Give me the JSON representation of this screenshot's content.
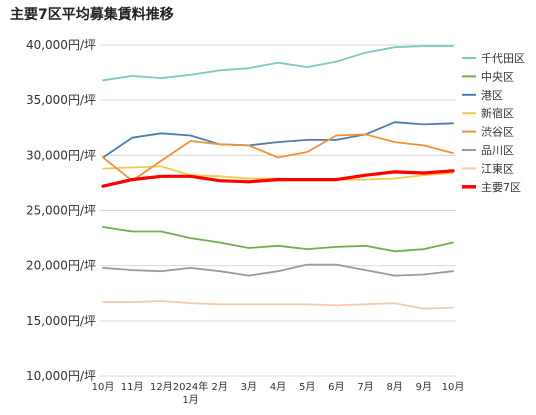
{
  "chart_data": {
    "type": "line",
    "title": "主要7区平均募集賃料推移",
    "xlabel": "",
    "ylabel": "",
    "categories": [
      "10月",
      "11月",
      "12月",
      "2024年\n1月",
      "2月",
      "3月",
      "4月",
      "5月",
      "6月",
      "7月",
      "8月",
      "9月",
      "10月"
    ],
    "ylim": [
      10000,
      40000
    ],
    "yticks": [
      "10,000円/坪",
      "15,000円/坪",
      "20,000円/坪",
      "25,000円/坪",
      "30,000円/坪",
      "35,000円/坪",
      "40,000円/坪"
    ],
    "grid": true,
    "legend": "right",
    "series": [
      {
        "name": "千代田区",
        "color": "#7ec8c3",
        "values": [
          36800,
          37200,
          37000,
          37300,
          37700,
          37900,
          38400,
          38000,
          38500,
          39300,
          39800,
          39900,
          39900
        ]
      },
      {
        "name": "中央区",
        "color": "#6ab04c",
        "values": [
          23500,
          23100,
          23100,
          22500,
          22100,
          21600,
          21800,
          21500,
          21700,
          21800,
          21300,
          21500,
          22100
        ]
      },
      {
        "name": "港区",
        "color": "#4a7fb0",
        "values": [
          29800,
          31600,
          32000,
          31800,
          31000,
          30900,
          31200,
          31400,
          31400,
          31900,
          33000,
          32800,
          32900
        ]
      },
      {
        "name": "新宿区",
        "color": "#f2c94c",
        "values": [
          28800,
          28900,
          29000,
          28200,
          28100,
          27900,
          27900,
          27800,
          27800,
          27800,
          27900,
          28200,
          28400
        ]
      },
      {
        "name": "渋谷区",
        "color": "#f0913a",
        "values": [
          29800,
          27700,
          29500,
          31300,
          31000,
          30900,
          29800,
          30300,
          31800,
          31900,
          31200,
          30900,
          30200
        ]
      },
      {
        "name": "品川区",
        "color": "#9a9a9a",
        "values": [
          19800,
          19600,
          19500,
          19800,
          19500,
          19100,
          19500,
          20100,
          20100,
          19600,
          19100,
          19200,
          19500
        ]
      },
      {
        "name": "江東区",
        "color": "#f7c9a9",
        "values": [
          16700,
          16700,
          16800,
          16600,
          16500,
          16500,
          16500,
          16500,
          16400,
          16500,
          16600,
          16100,
          16200
        ]
      },
      {
        "name": "主要7区",
        "color": "#ff0000",
        "bold": true,
        "values": [
          27200,
          27800,
          28100,
          28100,
          27700,
          27600,
          27800,
          27800,
          27800,
          28200,
          28500,
          28400,
          28600
        ]
      }
    ]
  }
}
